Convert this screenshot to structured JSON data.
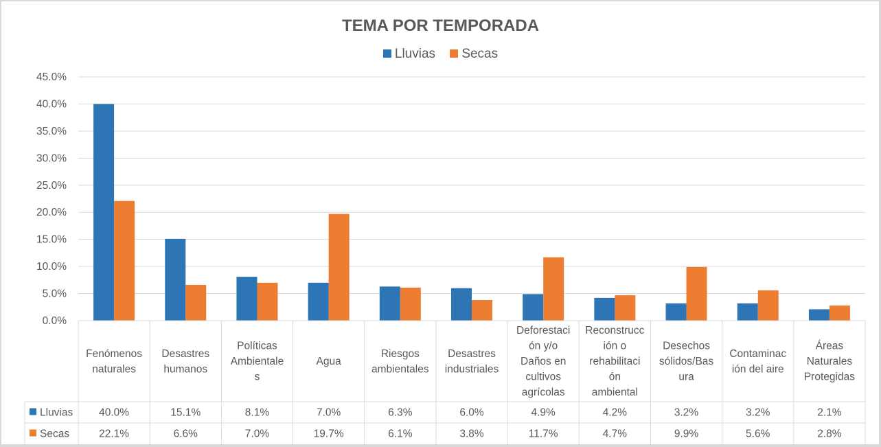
{
  "chart_data": {
    "type": "bar",
    "title": "TEMA POR TEMPORADA",
    "xlabel": "",
    "ylabel": "",
    "ylim": [
      0,
      45
    ],
    "yticks": [
      "0.0%",
      "5.0%",
      "10.0%",
      "15.0%",
      "20.0%",
      "25.0%",
      "30.0%",
      "35.0%",
      "40.0%",
      "45.0%"
    ],
    "grid": true,
    "legend_position": "top",
    "categories": [
      [
        "Fenómenos",
        "naturales"
      ],
      [
        "Desastres",
        "humanos"
      ],
      [
        "Políticas",
        "Ambientale",
        "s"
      ],
      [
        "Agua"
      ],
      [
        "Riesgos",
        "ambientales"
      ],
      [
        "Desastres",
        "industriales"
      ],
      [
        "Deforestaci",
        "ón y/o",
        "Daños en",
        "cultivos",
        "agrícolas"
      ],
      [
        "Reconstrucc",
        "ión o",
        "rehabilitaci",
        "ón",
        "ambiental"
      ],
      [
        "Desechos",
        "sólidos/Bas",
        "ura"
      ],
      [
        "Contaminac",
        "ión del aire"
      ],
      [
        "Áreas",
        "Naturales",
        "Protegidas"
      ]
    ],
    "series": [
      {
        "name": "Lluvias",
        "color": "#2e75b6",
        "values": [
          40.0,
          15.1,
          8.1,
          7.0,
          6.3,
          6.0,
          4.9,
          4.2,
          3.2,
          3.2,
          2.1
        ],
        "labels": [
          "40.0%",
          "15.1%",
          "8.1%",
          "7.0%",
          "6.3%",
          "6.0%",
          "4.9%",
          "4.2%",
          "3.2%",
          "3.2%",
          "2.1%"
        ]
      },
      {
        "name": "Secas",
        "color": "#ed7d31",
        "values": [
          22.1,
          6.6,
          7.0,
          19.7,
          6.1,
          3.8,
          11.7,
          4.7,
          9.9,
          5.6,
          2.8
        ],
        "labels": [
          "22.1%",
          "6.6%",
          "7.0%",
          "19.7%",
          "6.1%",
          "3.8%",
          "11.7%",
          "4.7%",
          "9.9%",
          "5.6%",
          "2.8%"
        ]
      }
    ],
    "data_table": true
  }
}
